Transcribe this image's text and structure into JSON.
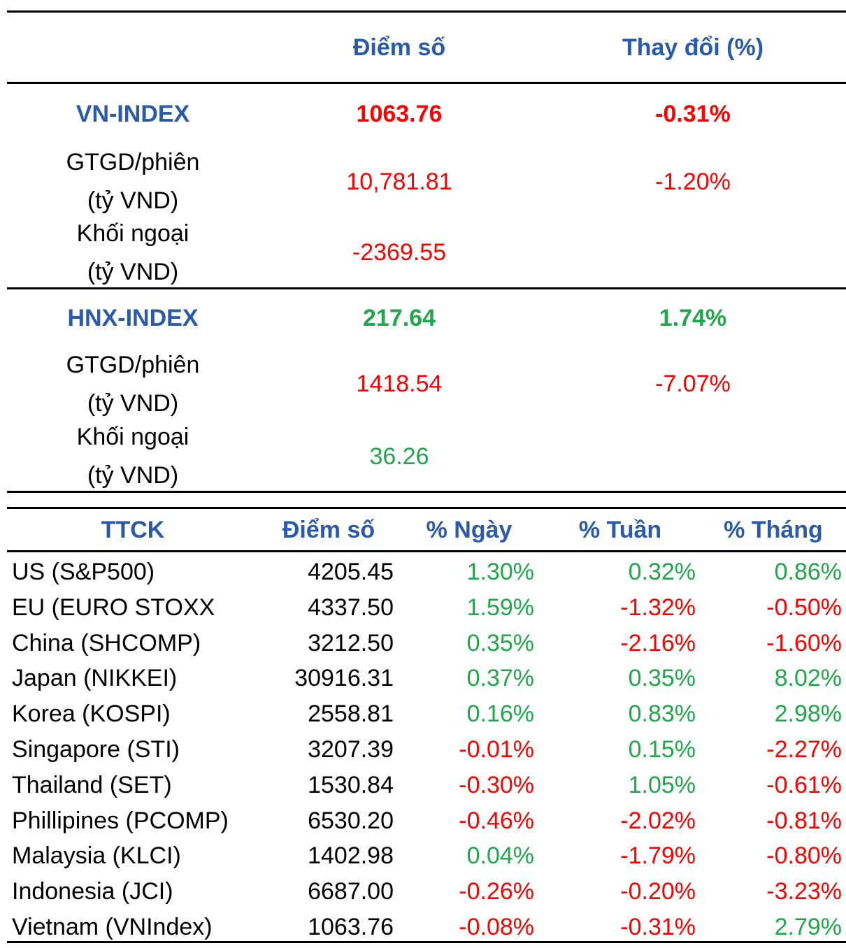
{
  "colors": {
    "header": "#2a5aa8",
    "negative": "#ff0000",
    "positive": "#1fa84a"
  },
  "top_table": {
    "headers": {
      "score": "Điểm số",
      "change": "Thay đổi (%)"
    },
    "vn": {
      "name": "VN-INDEX",
      "score": "1063.76",
      "change": "-0.31%",
      "gtgd_label1": "GTGD/phiên",
      "gtgd_label2": "(tỷ VND)",
      "gtgd_value": "10,781.81",
      "gtgd_change": "-1.20%",
      "foreign_label1": "Khối ngoại",
      "foreign_label2": "(tỷ VND)",
      "foreign_value": "-2369.55"
    },
    "hnx": {
      "name": "HNX-INDEX",
      "score": "217.64",
      "change": "1.74%",
      "gtgd_label1": "GTGD/phiên",
      "gtgd_label2": "(tỷ VND)",
      "gtgd_value": "1418.54",
      "gtgd_change": "-7.07%",
      "foreign_label1": "Khối ngoại",
      "foreign_label2": "(tỷ VND)",
      "foreign_value": "36.26"
    }
  },
  "market_table": {
    "headers": {
      "market": "TTCK",
      "score": "Điểm số",
      "day": "% Ngày",
      "week": "% Tuần",
      "month": "% Tháng"
    },
    "rows": [
      {
        "market": "US (S&P500)",
        "score": "4205.45",
        "day": "1.30%",
        "week": "0.32%",
        "month": "0.86%"
      },
      {
        "market": "EU (EURO STOXX",
        "score": "4337.50",
        "day": "1.59%",
        "week": "-1.32%",
        "month": "-0.50%"
      },
      {
        "market": "China (SHCOMP)",
        "score": "3212.50",
        "day": "0.35%",
        "week": "-2.16%",
        "month": "-1.60%"
      },
      {
        "market": "Japan (NIKKEI)",
        "score": "30916.31",
        "day": "0.37%",
        "week": "0.35%",
        "month": "8.02%"
      },
      {
        "market": "Korea (KOSPI)",
        "score": "2558.81",
        "day": "0.16%",
        "week": "0.83%",
        "month": "2.98%"
      },
      {
        "market": "Singapore (STI)",
        "score": "3207.39",
        "day": "-0.01%",
        "week": "0.15%",
        "month": "-2.27%"
      },
      {
        "market": "Thailand (SET)",
        "score": "1530.84",
        "day": "-0.30%",
        "week": "1.05%",
        "month": "-0.61%"
      },
      {
        "market": "Phillipines (PCOMP)",
        "score": "6530.20",
        "day": "-0.46%",
        "week": "-2.02%",
        "month": "-0.81%"
      },
      {
        "market": "Malaysia (KLCI)",
        "score": "1402.98",
        "day": "0.04%",
        "week": "-1.79%",
        "month": "-0.80%"
      },
      {
        "market": "Indonesia (JCI)",
        "score": "6687.00",
        "day": "-0.26%",
        "week": "-0.20%",
        "month": "-3.23%"
      },
      {
        "market": "Vietnam (VNIndex)",
        "score": "1063.76",
        "day": "-0.08%",
        "week": "-0.31%",
        "month": "2.79%"
      }
    ]
  }
}
